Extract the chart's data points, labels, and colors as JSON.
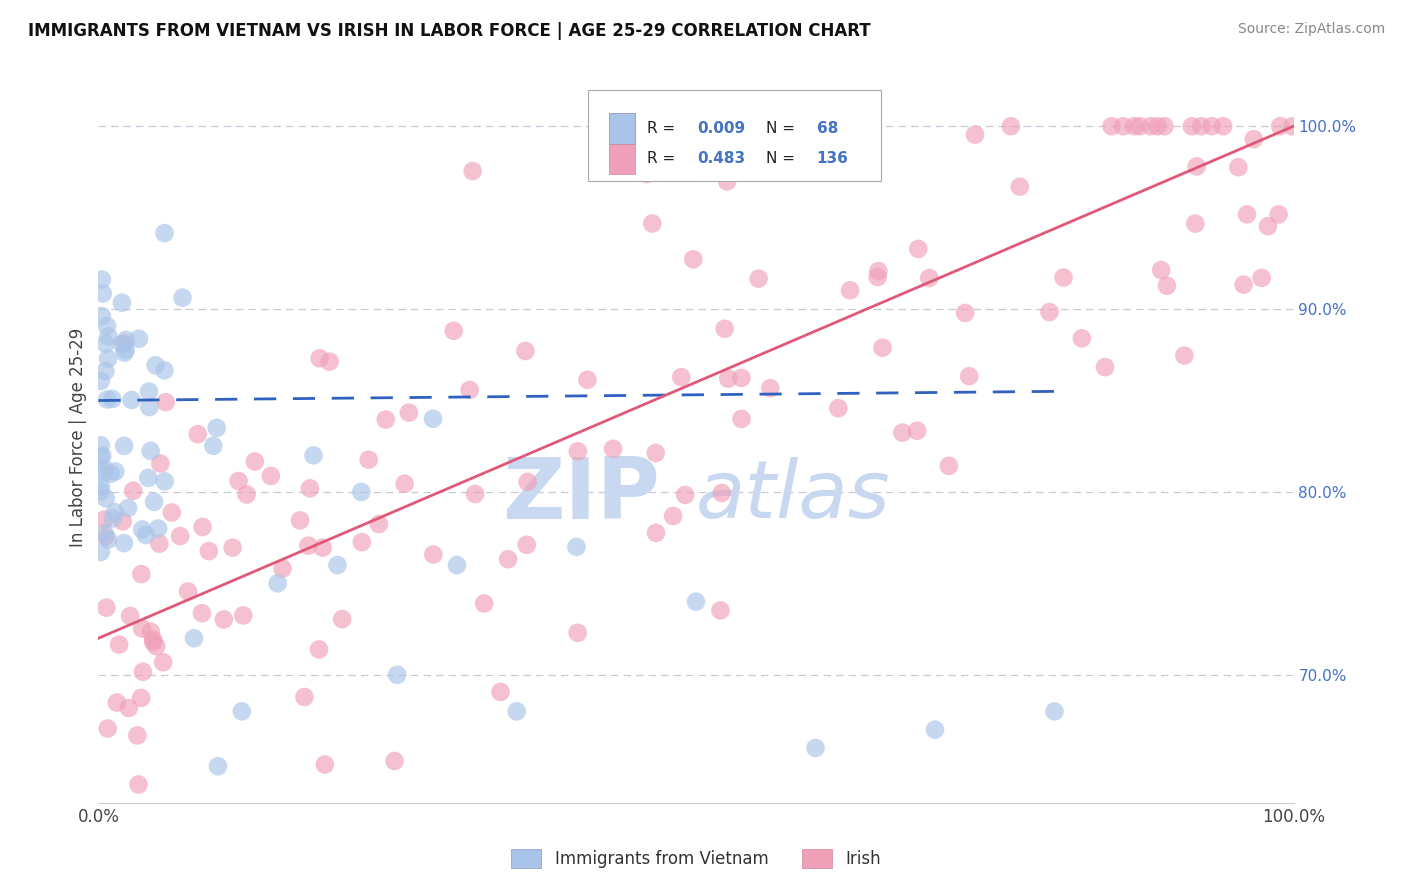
{
  "title": "IMMIGRANTS FROM VIETNAM VS IRISH IN LABOR FORCE | AGE 25-29 CORRELATION CHART",
  "source": "Source: ZipAtlas.com",
  "ylabel": "In Labor Force | Age 25-29",
  "legend_label_1": "Immigrants from Vietnam",
  "legend_label_2": "Irish",
  "r1": "0.009",
  "n1": "68",
  "r2": "0.483",
  "n2": "136",
  "blue_color": "#a8c4e8",
  "pink_color": "#f0a0b8",
  "blue_line_color": "#3060c0",
  "pink_line_color": "#e05878",
  "legend_r_color": "#4472c4",
  "title_color": "#111111",
  "source_color": "#888888",
  "background_color": "#ffffff",
  "grid_color": "#c8c8d8",
  "watermark_color": "#c8d8f0",
  "xmin": 0,
  "xmax": 100,
  "ymin": 63,
  "ymax": 103,
  "yticks": [
    70,
    80,
    90,
    100
  ],
  "viet_trend_y0": 85.0,
  "viet_trend_y1": 85.5,
  "irish_trend_y0": 72.0,
  "irish_trend_y1": 100.0
}
